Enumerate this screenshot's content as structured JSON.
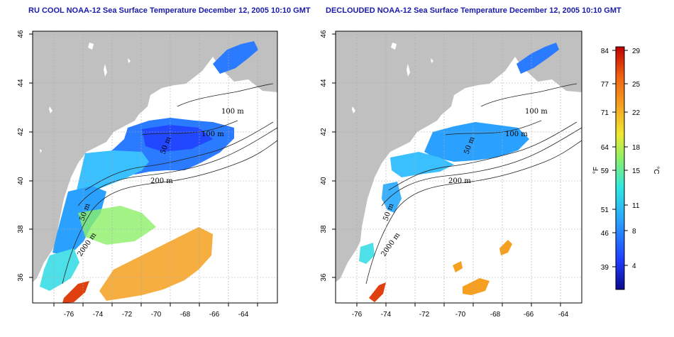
{
  "panels": [
    {
      "title": "RU COOL NOAA-12 Sea Surface Temperature December 12, 2005 10:10 GMT",
      "x_ticks": [
        "-76",
        "-74",
        "-72",
        "-70",
        "-68",
        "-66",
        "-64"
      ],
      "y_ticks": [
        "36",
        "38",
        "40",
        "42",
        "44",
        "46"
      ],
      "contour_labels": [
        "100 m",
        "100 m",
        "50 m",
        "200 m",
        "50 m",
        "2000 m"
      ]
    },
    {
      "title": "DECLOUDED NOAA-12 Sea Surface Temperature December 12, 2005 10:10 GMT",
      "x_ticks": [
        "-76",
        "-74",
        "-72",
        "-70",
        "-68",
        "-66",
        "-64"
      ],
      "y_ticks": [
        "36",
        "38",
        "40",
        "42",
        "44",
        "46"
      ],
      "contour_labels": [
        "100 m",
        "100 m",
        "50 m",
        "200 m",
        "50 m",
        "2000 m"
      ]
    }
  ],
  "colorbar": {
    "fahrenheit_label": "°F",
    "celsius_label": "°C",
    "fahrenheit_ticks": [
      "84",
      "77",
      "71",
      "64",
      "59",
      "51",
      "46",
      "39"
    ],
    "celsius_ticks": [
      "29",
      "25",
      "22",
      "18",
      "15",
      "11",
      "8",
      "4"
    ],
    "colors": [
      "#0a0a8c",
      "#1f3cff",
      "#2aa0ff",
      "#2ee8e0",
      "#8cf068",
      "#f0e830",
      "#f5a020",
      "#f06010",
      "#c00000"
    ]
  },
  "colors": {
    "land": "#c0c0c0",
    "sea_background": "#ffffff",
    "title": "#1a1aa8",
    "grid": "#aaaaaa"
  }
}
